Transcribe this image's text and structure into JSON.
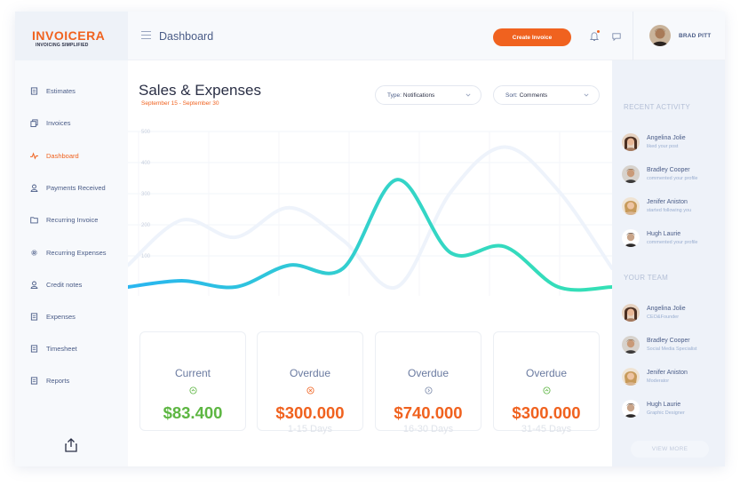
{
  "brand": {
    "logo": "INVOICERA",
    "tagline": "INVOICING SIMPLIFIED",
    "accent": "#f0621f"
  },
  "sidebar": {
    "items": [
      {
        "label": "Estimates",
        "icon": "document-icon",
        "active": false
      },
      {
        "label": "Invoices",
        "icon": "copy-icon",
        "active": false
      },
      {
        "label": "Dashboard",
        "icon": "pulse-icon",
        "active": true
      },
      {
        "label": "Payments Received",
        "icon": "user-icon",
        "active": false
      },
      {
        "label": "Recurring Invoice",
        "icon": "folder-icon",
        "active": false
      },
      {
        "label": "Recurring Expenses",
        "icon": "gear-icon",
        "active": false
      },
      {
        "label": "Credit notes",
        "icon": "user-icon",
        "active": false
      },
      {
        "label": "Expenses",
        "icon": "document-icon",
        "active": false
      },
      {
        "label": "Timesheet",
        "icon": "document-icon",
        "active": false
      },
      {
        "label": "Reports",
        "icon": "document-icon",
        "active": false
      }
    ],
    "share_icon": "share-icon"
  },
  "header": {
    "title": "Dashboard",
    "create_label": "Create Invoice",
    "user_name": "BRAD PITT"
  },
  "main": {
    "title": "Sales & Expenses",
    "subtitle": "September 15 - September 30",
    "type_filter": {
      "key": "Type:",
      "value": "Notifications"
    },
    "sort_filter": {
      "key": "Sort:",
      "value": "Comments"
    }
  },
  "chart_data": {
    "type": "line",
    "y_ticks": [
      "500",
      "400",
      "300",
      "200",
      "100"
    ],
    "ylim": [
      0,
      500
    ],
    "grid": true,
    "series": [
      {
        "values": [
          0,
          20,
          0,
          70,
          60,
          345,
          110,
          130,
          0,
          0
        ],
        "color": "gradient #29b5f0 → #34e0b5"
      },
      {
        "values": [
          70,
          215,
          160,
          255,
          150,
          0,
          305,
          450,
          310,
          60
        ],
        "color": "#eef3fb"
      }
    ]
  },
  "cards": [
    {
      "title": "Current",
      "value": "$83.400",
      "sub": "",
      "color": "#5db642",
      "icon": "arrow-up-circle-icon"
    },
    {
      "title": "Overdue",
      "value": "$300.000",
      "sub": "1-15 Days",
      "color": "#f0621f",
      "icon": "x-circle-icon"
    },
    {
      "title": "Overdue",
      "value": "$740.000",
      "sub": "16-30 Days",
      "color": "#f0621f",
      "icon": "arrow-right-circle-icon"
    },
    {
      "title": "Overdue",
      "value": "$300.000",
      "sub": "31-45 Days",
      "color": "#f0621f",
      "icon": "arrow-up-circle-icon"
    }
  ],
  "right_panel": {
    "recent_heading": "RECENT ACTIVITY",
    "recent": [
      {
        "name": "Angelina Jolie",
        "desc": "liked your post"
      },
      {
        "name": "Bradley Cooper",
        "desc": "commented your profile"
      },
      {
        "name": "Jenifer Aniston",
        "desc": "started following you"
      },
      {
        "name": "Hugh Laurie",
        "desc": "commented your profile"
      }
    ],
    "team_heading": "YOUR TEAM",
    "team": [
      {
        "name": "Angelina Jolie",
        "desc": "CEO&Founder"
      },
      {
        "name": "Bradley Cooper",
        "desc": "Social Media Specialist"
      },
      {
        "name": "Jenifer Aniston",
        "desc": "Moderator"
      },
      {
        "name": "Hugh Laurie",
        "desc": "Graphic Designer"
      }
    ],
    "view_more": "VIEW MORE"
  }
}
